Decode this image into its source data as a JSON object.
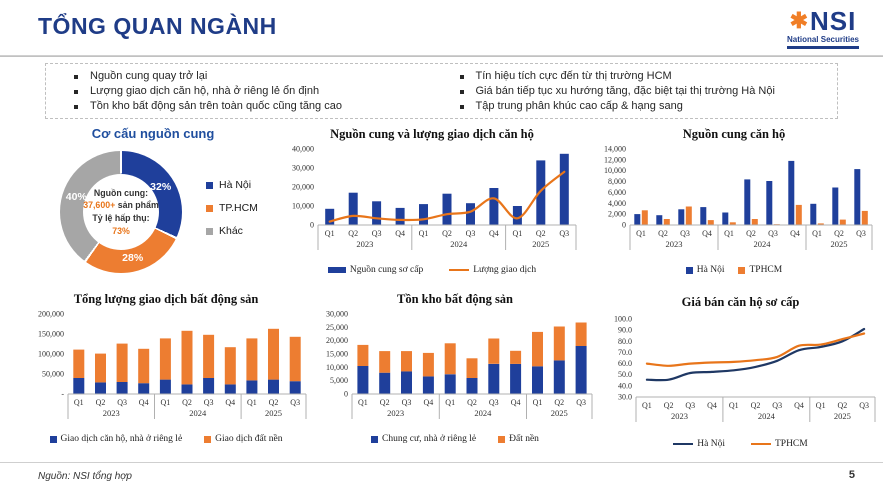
{
  "header": {
    "title": "TỔNG QUAN NGÀNH",
    "logo": {
      "symbol": "✱",
      "name": "NSI",
      "subtitle": "National Securities"
    }
  },
  "highlights": {
    "left": [
      "Nguồn cung quay trở lại",
      "Lượng giao dịch căn hộ, nhà ở riêng lẻ ổn định",
      "Tồn kho bất động sản trên toàn quốc cũng tăng cao"
    ],
    "right": [
      "Tín hiệu tích cực đến từ thị trường HCM",
      "Giá bán tiếp tục xu hướng tăng, đặc biệt tại thị trường Hà Nội",
      "Tập trung phân khúc cao cấp & hạng sang"
    ]
  },
  "colors": {
    "navy_title": "#1f3c87",
    "bar_blue": "#1f3f9b",
    "orange": "#ed7d31",
    "line_orange": "#e8751a",
    "line_navy": "#1f3864",
    "gray": "#a6a6a6"
  },
  "footer": {
    "source": "Nguồn: NSI tổng hợp",
    "page": "5"
  },
  "chart_data": [
    {
      "id": "co-cau-nguon-cung",
      "type": "pie",
      "title": "Cơ cấu nguồn cung",
      "slices": [
        {
          "label": "Hà Nội",
          "value": 32,
          "color": "#1f3f9b"
        },
        {
          "label": "TP.HCM",
          "value": 28,
          "color": "#ed7d31"
        },
        {
          "label": "Khác",
          "value": 40,
          "color": "#a6a6a6"
        }
      ],
      "center": {
        "line1": "Nguồn cung:",
        "value": "37,600+",
        "value_suffix": "sản phẩm",
        "rate_label": "Tỷ lệ hấp thụ:",
        "rate_value": "73%"
      },
      "legend_position": "right"
    },
    {
      "id": "nguon-cung-giao-dich",
      "type": "bar",
      "title": "Nguồn cung và lượng giao dịch căn hộ",
      "categories": [
        "Q1",
        "Q2",
        "Q3",
        "Q4",
        "Q1",
        "Q2",
        "Q3",
        "Q4",
        "Q1",
        "Q2",
        "Q3"
      ],
      "year_groups": [
        {
          "label": "2023",
          "span": 4
        },
        {
          "label": "2024",
          "span": 4
        },
        {
          "label": "2025",
          "span": 3
        }
      ],
      "ylim": [
        0,
        40000
      ],
      "yticks": [
        0,
        10000,
        20000,
        30000,
        40000
      ],
      "ytick_labels": [
        "0",
        "10,000",
        "20,000",
        "30,000",
        "40,000"
      ],
      "grid": false,
      "series": [
        {
          "name": "Nguồn cung sơ cấp",
          "kind": "bar",
          "swatch": "bar",
          "color": "#1f3f9b",
          "values": [
            8500,
            17000,
            12500,
            9000,
            11000,
            16500,
            11500,
            19500,
            10000,
            34000,
            37500
          ]
        },
        {
          "name": "Lượng giao dịch",
          "kind": "line",
          "swatch": "line",
          "color": "#e8751a",
          "values": [
            1800,
            4800,
            3500,
            2700,
            3000,
            5700,
            7000,
            14000,
            3500,
            18000,
            28000
          ]
        }
      ]
    },
    {
      "id": "nguon-cung-can-ho",
      "type": "bar",
      "title": "Nguồn cung căn hộ",
      "categories": [
        "Q1",
        "Q2",
        "Q3",
        "Q4",
        "Q1",
        "Q2",
        "Q3",
        "Q4",
        "Q1",
        "Q2",
        "Q3"
      ],
      "year_groups": [
        {
          "label": "2023",
          "span": 4
        },
        {
          "label": "2024",
          "span": 4
        },
        {
          "label": "2025",
          "span": 3
        }
      ],
      "ylim": [
        0,
        14000
      ],
      "yticks": [
        0,
        2000,
        4000,
        6000,
        8000,
        10000,
        12000,
        14000
      ],
      "ytick_labels": [
        "0",
        "2,000",
        "4,000",
        "6,000",
        "8,000",
        "10,000",
        "12,000",
        "14,000"
      ],
      "grid": false,
      "series": [
        {
          "name": "Hà Nội",
          "kind": "bar",
          "swatch": "square",
          "color": "#1f3f9b",
          "values": [
            2000,
            1800,
            2900,
            3300,
            2300,
            8400,
            8100,
            11800,
            3900,
            6900,
            10300
          ]
        },
        {
          "name": "TPHCM",
          "kind": "bar",
          "swatch": "square",
          "color": "#ed7d31",
          "values": [
            2700,
            1100,
            3400,
            900,
            500,
            1100,
            150,
            3700,
            300,
            1000,
            2600
          ]
        }
      ]
    },
    {
      "id": "tong-luong-giao-dich",
      "type": "bar",
      "stacked": true,
      "title": "Tổng lượng giao dịch bất động sản",
      "categories": [
        "Q1",
        "Q2",
        "Q3",
        "Q4",
        "Q1",
        "Q2",
        "Q3",
        "Q4",
        "Q1",
        "Q2",
        "Q3"
      ],
      "year_groups": [
        {
          "label": "2023",
          "span": 4
        },
        {
          "label": "2024",
          "span": 4
        },
        {
          "label": "2025",
          "span": 3
        }
      ],
      "ylim": [
        0,
        200000
      ],
      "yticks": [
        0,
        50000,
        100000,
        150000,
        200000
      ],
      "ytick_labels": [
        "-",
        "50,000",
        "100,000",
        "150,000",
        "200,000"
      ],
      "grid": false,
      "series": [
        {
          "name": "Giao dịch căn hộ, nhà ở riêng lẻ",
          "kind": "bar",
          "swatch": "square",
          "color": "#1f3f9b",
          "values": [
            40000,
            29000,
            30000,
            27000,
            36000,
            24000,
            40000,
            24000,
            34000,
            36000,
            32000
          ]
        },
        {
          "name": "Giao dịch đất nền",
          "kind": "bar",
          "swatch": "square",
          "color": "#ed7d31",
          "values": [
            71000,
            72000,
            96000,
            86000,
            103000,
            134000,
            108000,
            93000,
            105000,
            127000,
            111000
          ]
        }
      ]
    },
    {
      "id": "ton-kho",
      "type": "bar",
      "stacked": true,
      "title": "Tồn kho bất động sản",
      "categories": [
        "Q1",
        "Q2",
        "Q3",
        "Q4",
        "Q1",
        "Q2",
        "Q3",
        "Q4",
        "Q1",
        "Q2",
        "Q3"
      ],
      "year_groups": [
        {
          "label": "2023",
          "span": 4
        },
        {
          "label": "2024",
          "span": 4
        },
        {
          "label": "2025",
          "span": 3
        }
      ],
      "ylim": [
        0,
        30000
      ],
      "yticks": [
        0,
        5000,
        10000,
        15000,
        20000,
        25000,
        30000
      ],
      "ytick_labels": [
        "0",
        "5,000",
        "10,000",
        "15,000",
        "20,000",
        "25,000",
        "30,000"
      ],
      "grid": false,
      "series": [
        {
          "name": "Chung cư, nhà ở riêng lẻ",
          "kind": "bar",
          "swatch": "square",
          "color": "#1f3f9b",
          "values": [
            10500,
            8000,
            8500,
            6600,
            7400,
            6000,
            11300,
            11300,
            10400,
            12600,
            18000
          ]
        },
        {
          "name": "Đất nền",
          "kind": "bar",
          "swatch": "square",
          "color": "#ed7d31",
          "values": [
            7900,
            8100,
            7600,
            8800,
            11600,
            7400,
            9500,
            4900,
            12900,
            12700,
            8800
          ]
        }
      ]
    },
    {
      "id": "gia-ban",
      "type": "line",
      "title": "Giá bán căn hộ sơ cấp",
      "categories": [
        "Q1",
        "Q2",
        "Q3",
        "Q4",
        "Q1",
        "Q2",
        "Q3",
        "Q4",
        "Q1",
        "Q2",
        "Q3"
      ],
      "year_groups": [
        {
          "label": "2023",
          "span": 4
        },
        {
          "label": "2024",
          "span": 4
        },
        {
          "label": "2025",
          "span": 3
        }
      ],
      "ylim": [
        30,
        100
      ],
      "yticks": [
        30,
        40,
        50,
        60,
        70,
        80,
        90,
        100
      ],
      "ytick_labels": [
        "30.0",
        "40.0",
        "50.0",
        "60.0",
        "70.0",
        "80.0",
        "90.0",
        "100.0"
      ],
      "grid": false,
      "series": [
        {
          "name": "Hà Nội",
          "kind": "line",
          "swatch": "line",
          "color": "#1f3864",
          "values": [
            45.5,
            45.5,
            51.5,
            52.5,
            54,
            57,
            62.5,
            72,
            75,
            80,
            91
          ]
        },
        {
          "name": "TPHCM",
          "kind": "line",
          "swatch": "line",
          "color": "#e8751a",
          "values": [
            60,
            58,
            60,
            61,
            61.5,
            63,
            66,
            76,
            77,
            82,
            87
          ]
        }
      ]
    }
  ]
}
